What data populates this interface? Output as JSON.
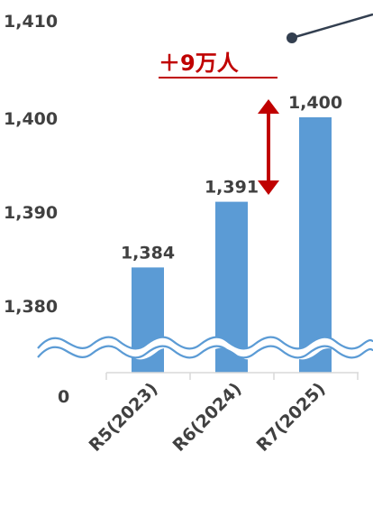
{
  "chart_data": {
    "type": "bar",
    "categories": [
      "R5(2023)",
      "R6(2024)",
      "R7(2025)"
    ],
    "values": [
      1384,
      1391,
      1400
    ],
    "data_labels": [
      "1,384",
      "1,391",
      "1,400"
    ],
    "y_tick_labels": [
      "1,410",
      "1,400",
      "1,390",
      "1,380",
      "0"
    ],
    "y_ticks": [
      1410,
      1400,
      1390,
      1380
    ],
    "ylim": [
      1375,
      1410
    ],
    "axis_break": true,
    "bar_color": "#5b9bd5",
    "annotation": "＋9万人",
    "annotation_color": "#c00000",
    "title": "",
    "xlabel": "",
    "ylabel": ""
  }
}
